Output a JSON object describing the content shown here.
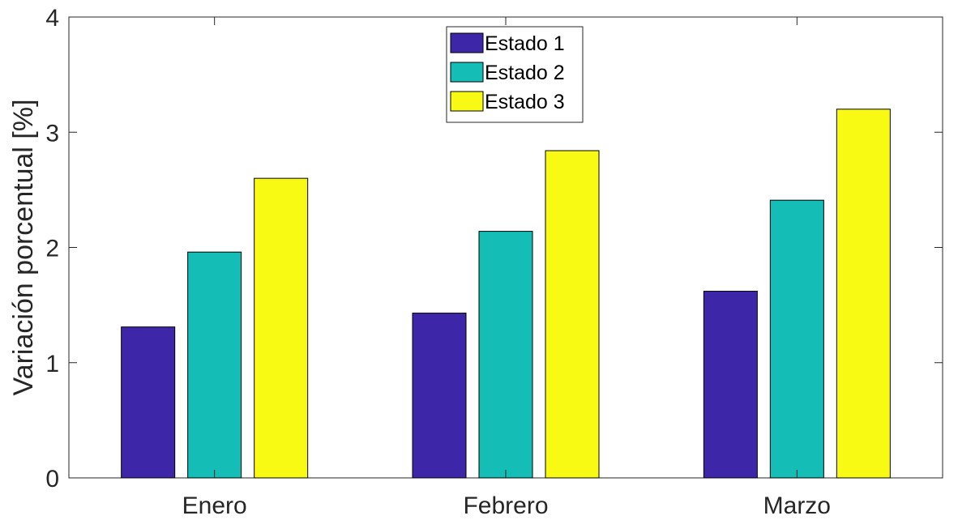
{
  "chart_data": {
    "type": "bar",
    "categories": [
      "Enero",
      "Febrero",
      "Marzo"
    ],
    "series": [
      {
        "name": "Estado 1",
        "color": "#3d27a8",
        "values": [
          1.31,
          1.43,
          1.62
        ]
      },
      {
        "name": "Estado 2",
        "color": "#14bdb6",
        "values": [
          1.96,
          2.14,
          2.41
        ]
      },
      {
        "name": "Estado 3",
        "color": "#f8fa14",
        "values": [
          2.6,
          2.84,
          3.2
        ]
      }
    ],
    "title": "",
    "xlabel": "",
    "ylabel": "Variación porcentual [%]",
    "ylim": [
      0,
      4
    ],
    "yticks": [
      0,
      1,
      2,
      3,
      4
    ],
    "grid": false,
    "legend_position": "top-center"
  }
}
